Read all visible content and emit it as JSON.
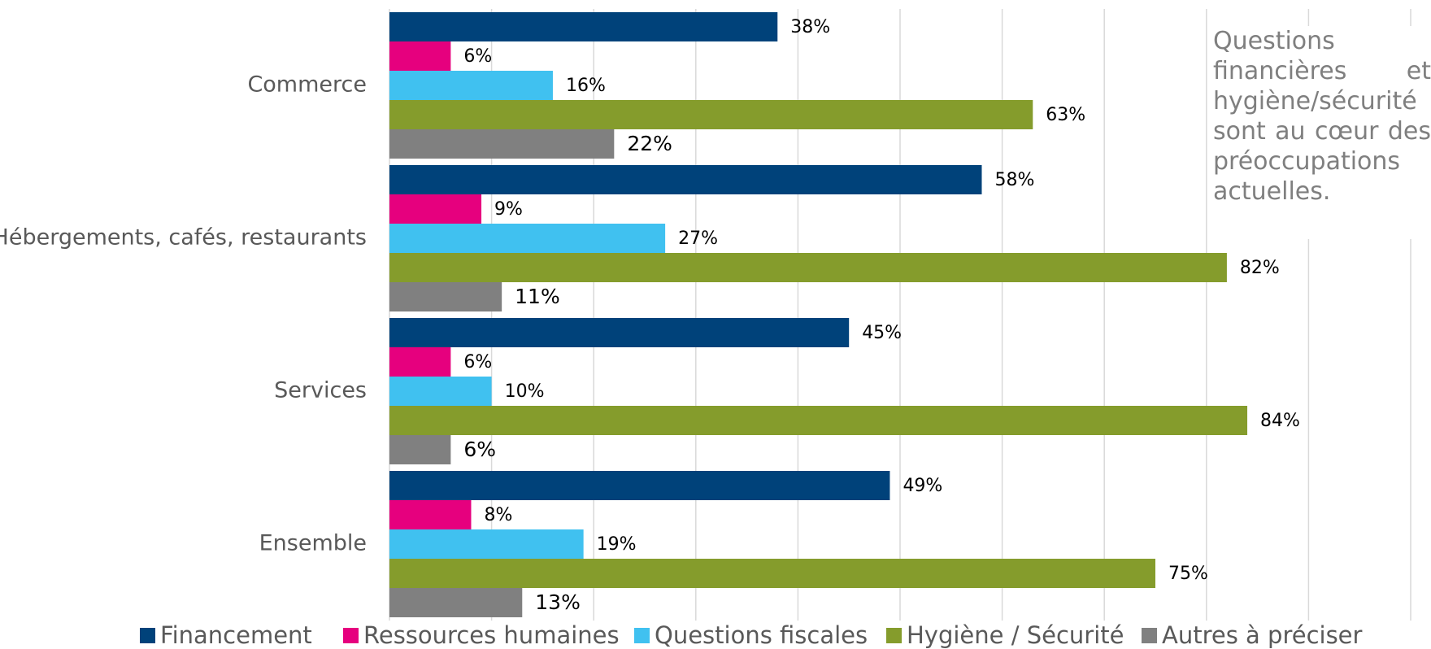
{
  "chart_data": {
    "type": "barh",
    "annotation": "Questions financières et hygiène/sécurité sont au cœur des préoccupations actuelles.",
    "categories": [
      "Commerce",
      "Hébergements, cafés, restaurants",
      "Services",
      "Ensemble"
    ],
    "series": [
      {
        "name": "Financement",
        "color": "#00427a",
        "values": [
          38,
          58,
          45,
          49
        ],
        "value_labels": [
          "38%",
          "58%",
          "45%",
          "49%"
        ]
      },
      {
        "name": "Ressources humaines",
        "color": "#e6007e",
        "values": [
          6,
          9,
          6,
          8
        ],
        "value_labels": [
          "6%",
          "9%",
          "6%",
          "8%"
        ]
      },
      {
        "name": "Questions fiscales",
        "color": "#40c1f0",
        "values": [
          16,
          27,
          10,
          19
        ],
        "value_labels": [
          "16%",
          "27%",
          "10%",
          "19%"
        ]
      },
      {
        "name": "Hygiène / Sécurité",
        "color": "#859c2c",
        "values": [
          63,
          82,
          84,
          75
        ],
        "value_labels": [
          "63%",
          "82%",
          "84%",
          "75%"
        ]
      },
      {
        "name": "Autres à préciser",
        "color": "#808080",
        "values": [
          22,
          11,
          6,
          13
        ],
        "value_labels": [
          "22%",
          "11%",
          "6%",
          "13%"
        ]
      }
    ],
    "xlim": [
      0,
      100
    ],
    "xticks": [
      0,
      10,
      20,
      30,
      40,
      50,
      60,
      70,
      80,
      90,
      100
    ],
    "grid": true
  }
}
